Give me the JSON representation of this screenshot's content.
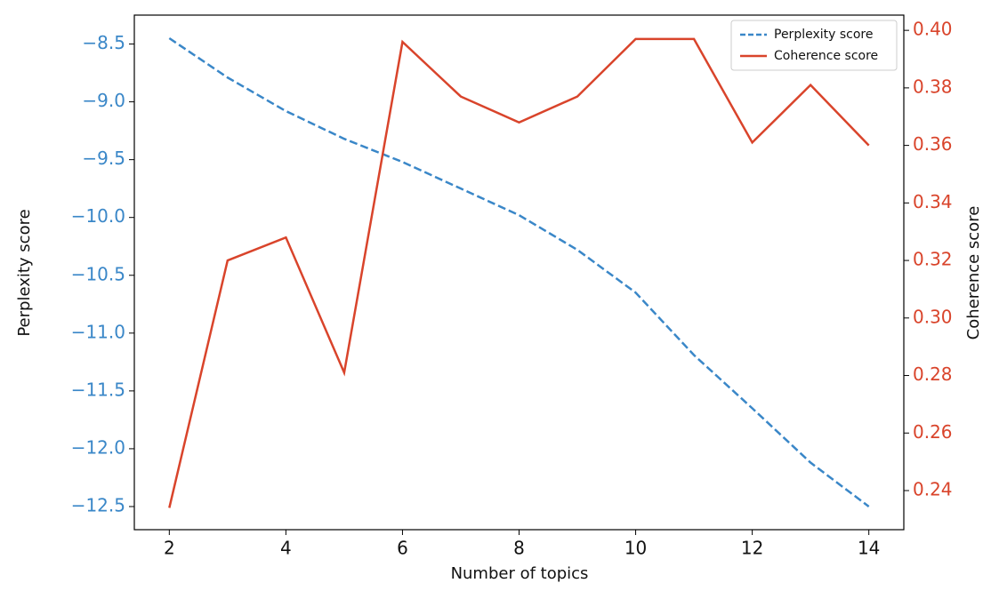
{
  "chart_data": {
    "type": "line",
    "xlabel": "Number of topics",
    "ylabel": "Perplexity score",
    "y2label": "Coherence score",
    "x": [
      2,
      3,
      4,
      5,
      6,
      7,
      8,
      9,
      10,
      11,
      12,
      13,
      14
    ],
    "xlim": [
      1.4,
      14.6
    ],
    "xticks": [
      2,
      4,
      6,
      8,
      10,
      12,
      14
    ],
    "ylim": [
      -12.7,
      -8.25
    ],
    "yticks": [
      {
        "value": -8.5,
        "label": "−8.5"
      },
      {
        "value": -9.0,
        "label": "−9.0"
      },
      {
        "value": -9.5,
        "label": "−9.5"
      },
      {
        "value": -10.0,
        "label": "−10.0"
      },
      {
        "value": -10.5,
        "label": "−10.5"
      },
      {
        "value": -11.0,
        "label": "−11.0"
      },
      {
        "value": -11.5,
        "label": "−11.5"
      },
      {
        "value": -12.0,
        "label": "−12.0"
      },
      {
        "value": -12.5,
        "label": "−12.5"
      }
    ],
    "y2lim": [
      0.2264,
      0.4053
    ],
    "y2ticks": [
      {
        "value": 0.24,
        "label": "0.24"
      },
      {
        "value": 0.26,
        "label": "0.26"
      },
      {
        "value": 0.28,
        "label": "0.28"
      },
      {
        "value": 0.3,
        "label": "0.30"
      },
      {
        "value": 0.32,
        "label": "0.32"
      },
      {
        "value": 0.34,
        "label": "0.34"
      },
      {
        "value": 0.36,
        "label": "0.36"
      },
      {
        "value": 0.38,
        "label": "0.38"
      },
      {
        "value": 0.4,
        "label": "0.40"
      }
    ],
    "legend": "upper right",
    "grid": false,
    "series": [
      {
        "name": "Perplexity score",
        "color": "#3a87c8",
        "dash": true,
        "values": [
          -8.45,
          -8.79,
          -9.08,
          -9.32,
          -9.52,
          -9.75,
          -9.98,
          -10.28,
          -10.65,
          -11.19,
          -11.65,
          -12.12,
          -12.5
        ]
      },
      {
        "name": "Coherence score",
        "color": "#d9442b",
        "axis": "y2",
        "values": [
          0.234,
          0.32,
          0.328,
          0.281,
          0.396,
          0.377,
          0.368,
          0.377,
          0.397,
          0.397,
          0.361,
          0.381,
          0.36
        ]
      }
    ]
  }
}
